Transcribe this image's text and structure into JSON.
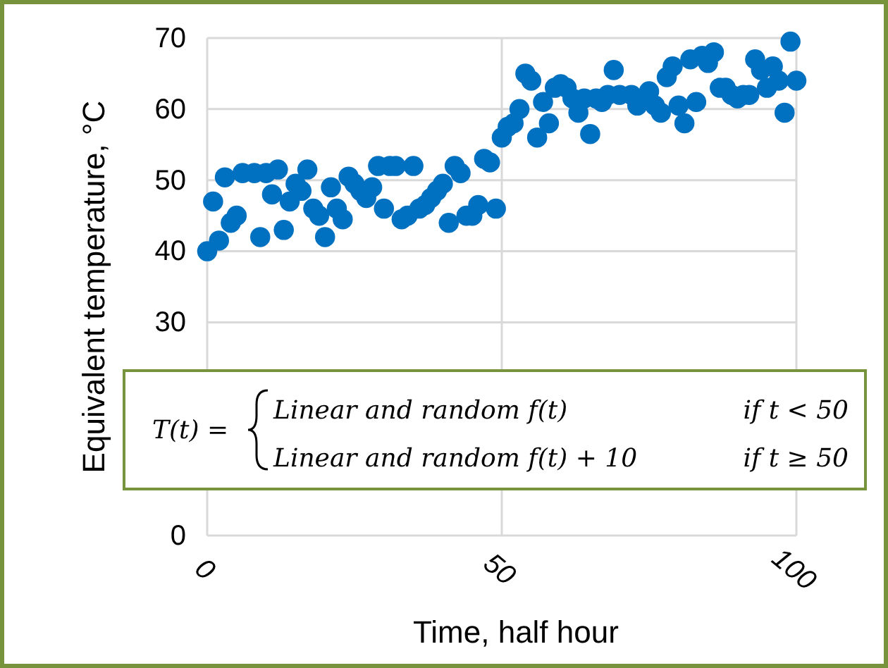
{
  "chart_data": {
    "type": "scatter",
    "xlabel": "Time, half hour",
    "ylabel": "Equivalent temperature, °C",
    "xlim": [
      0,
      100
    ],
    "xticks": [
      0,
      50,
      100
    ],
    "ylim": [
      0,
      70
    ],
    "yticks": [
      0,
      30,
      40,
      50,
      60,
      70
    ],
    "grid": true,
    "marker": "circle",
    "annotations": [
      "T(t) =",
      "Linear and random f(t)",
      "if t < 50",
      "Linear and random f(t) + 10",
      "if t ≥ 50"
    ],
    "series": [
      {
        "color": "#0070c0",
        "x": [
          0,
          1,
          2,
          3,
          4,
          5,
          6,
          8,
          9,
          10,
          11,
          12,
          13,
          14,
          15,
          16,
          17,
          18,
          19,
          20,
          21,
          22,
          23,
          24,
          25,
          26,
          27,
          28,
          29,
          30,
          31,
          32,
          33,
          34,
          35,
          36,
          37,
          38,
          39,
          40,
          41,
          42,
          43,
          44,
          45,
          46,
          47,
          48,
          49,
          50,
          51,
          52,
          53,
          54,
          55,
          56,
          57,
          58,
          59,
          60,
          61,
          62,
          63,
          64,
          65,
          66,
          67,
          68,
          69,
          70,
          72,
          73,
          75,
          76,
          77,
          78,
          79,
          80,
          81,
          82,
          83,
          84,
          85,
          86,
          87,
          88,
          89,
          90,
          91,
          92,
          93,
          94,
          95,
          96,
          97,
          98,
          99,
          100
        ],
        "values": [
          40,
          47,
          41.5,
          50.4,
          44,
          45,
          51,
          51,
          42,
          51,
          48,
          51.5,
          43,
          47,
          49.5,
          48.5,
          51.5,
          46,
          45,
          42,
          49,
          46,
          44.5,
          50.5,
          49.5,
          48.5,
          47.5,
          49,
          52,
          46,
          52,
          52,
          44.5,
          45,
          52,
          46,
          46.5,
          47.5,
          48.5,
          49.5,
          44,
          52,
          51,
          45,
          45,
          46.5,
          53,
          52.5,
          46,
          56,
          57.5,
          58,
          60,
          65,
          64,
          56,
          61,
          58,
          63,
          63.5,
          63,
          61.5,
          59.5,
          61.5,
          56.5,
          61.5,
          61,
          62,
          65.5,
          62,
          62,
          60.5,
          62.5,
          60.5,
          59.5,
          64.5,
          66,
          60.5,
          58,
          67,
          61,
          67.5,
          66.5,
          68,
          63,
          63,
          62,
          61.5,
          62,
          62,
          67,
          65.5,
          63,
          66,
          64,
          59.5,
          69.5,
          64
        ]
      }
    ]
  }
}
